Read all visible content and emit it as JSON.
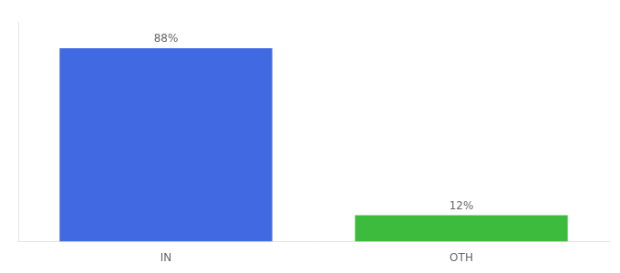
{
  "chart_data": {
    "type": "bar",
    "categories": [
      "IN",
      "OTH"
    ],
    "values": [
      88,
      12
    ],
    "value_labels": [
      "88%",
      "12%"
    ],
    "colors": [
      "#4169e1",
      "#3dbb3d"
    ],
    "ylim": [
      0,
      100
    ],
    "grid": false,
    "data_labels": true,
    "tick_labels": "x"
  }
}
